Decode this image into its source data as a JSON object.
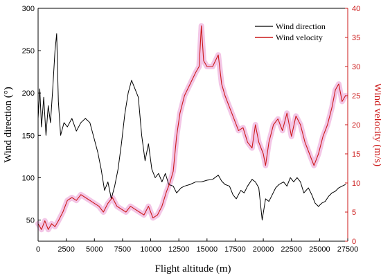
{
  "chart_data": {
    "type": "line",
    "title": "",
    "xlabel": "Flight altitude (m)",
    "ylabel": "Wind direction (°)",
    "y2label": "Wind velocity (m/s)",
    "xlim": [
      0,
      27500
    ],
    "ylim": [
      25,
      300
    ],
    "y2lim": [
      0,
      40
    ],
    "x_ticks": [
      0,
      2500,
      5000,
      7500,
      10000,
      12500,
      15000,
      17500,
      20000,
      22500,
      25000,
      27500
    ],
    "y_ticks": [
      50,
      100,
      150,
      200,
      250,
      300
    ],
    "y2_ticks": [
      0,
      5,
      10,
      15,
      20,
      25,
      30,
      35,
      40
    ],
    "legend_position": "top-right",
    "colors": {
      "direction": "#000000",
      "velocity": "#cc1a1a",
      "velocity_axis": "#cc1a1a",
      "velocity_band": "#f3c6e6"
    },
    "series": [
      {
        "name": "Wind direction",
        "axis": "left",
        "x": [
          0,
          150,
          300,
          500,
          700,
          900,
          1100,
          1300,
          1500,
          1650,
          1800,
          2000,
          2300,
          2600,
          3000,
          3400,
          3800,
          4200,
          4600,
          5000,
          5300,
          5600,
          5900,
          6200,
          6500,
          6800,
          7100,
          7400,
          7700,
          8000,
          8300,
          8600,
          8900,
          9200,
          9500,
          9800,
          10100,
          10400,
          10700,
          11000,
          11300,
          11600,
          12000,
          12300,
          12700,
          13000,
          13500,
          14000,
          14500,
          15000,
          15500,
          16000,
          16300,
          16600,
          17000,
          17300,
          17600,
          18000,
          18300,
          18600,
          19000,
          19300,
          19600,
          19900,
          20200,
          20500,
          20800,
          21100,
          21400,
          21800,
          22100,
          22400,
          22700,
          23000,
          23300,
          23600,
          24000,
          24300,
          24600,
          24900,
          25200,
          25500,
          25800,
          26100,
          26400,
          26700,
          27000,
          27300
        ],
        "values": [
          170,
          205,
          160,
          195,
          150,
          185,
          165,
          205,
          250,
          270,
          190,
          150,
          165,
          160,
          170,
          155,
          165,
          170,
          165,
          145,
          130,
          110,
          85,
          95,
          75,
          90,
          110,
          140,
          175,
          200,
          215,
          205,
          195,
          150,
          120,
          140,
          110,
          100,
          105,
          95,
          105,
          92,
          90,
          82,
          88,
          90,
          92,
          95,
          95,
          97,
          98,
          103,
          96,
          92,
          90,
          80,
          75,
          85,
          82,
          90,
          98,
          95,
          88,
          50,
          75,
          72,
          80,
          88,
          92,
          95,
          90,
          100,
          95,
          100,
          95,
          82,
          88,
          80,
          70,
          66,
          70,
          72,
          78,
          82,
          84,
          88,
          90,
          92
        ]
      },
      {
        "name": "Wind velocity",
        "axis": "right",
        "x": [
          0,
          300,
          600,
          900,
          1200,
          1500,
          1800,
          2200,
          2600,
          3000,
          3400,
          3800,
          4200,
          4600,
          5000,
          5400,
          5800,
          6200,
          6600,
          7000,
          7400,
          7800,
          8200,
          8600,
          9000,
          9400,
          9800,
          10200,
          10600,
          11000,
          11400,
          11700,
          12000,
          12300,
          12600,
          13000,
          13500,
          14000,
          14300,
          14500,
          14700,
          15000,
          15500,
          16000,
          16300,
          16600,
          17000,
          17400,
          17800,
          18200,
          18600,
          19000,
          19300,
          19600,
          20000,
          20200,
          20500,
          20900,
          21300,
          21700,
          22100,
          22500,
          22900,
          23300,
          23700,
          24100,
          24500,
          24900,
          25300,
          25700,
          26100,
          26400,
          26700,
          27000,
          27300
        ],
        "values": [
          3,
          2,
          3.5,
          2,
          3,
          2.5,
          3.5,
          5,
          7,
          7.5,
          7,
          8,
          7.5,
          7,
          6.5,
          6,
          5,
          6.5,
          7.5,
          6,
          5.5,
          5,
          6,
          5.5,
          5,
          4.5,
          6,
          4,
          4.5,
          6,
          8.5,
          10,
          12,
          18,
          22,
          25,
          27,
          29,
          30,
          37,
          31,
          30,
          30,
          32,
          27,
          25,
          23,
          21,
          19,
          19.5,
          17,
          16,
          20,
          17,
          15,
          13,
          17,
          20,
          21,
          19,
          22,
          18,
          21.5,
          20,
          17,
          15,
          13,
          15,
          18,
          20,
          23,
          26,
          27,
          24,
          25
        ]
      }
    ]
  }
}
